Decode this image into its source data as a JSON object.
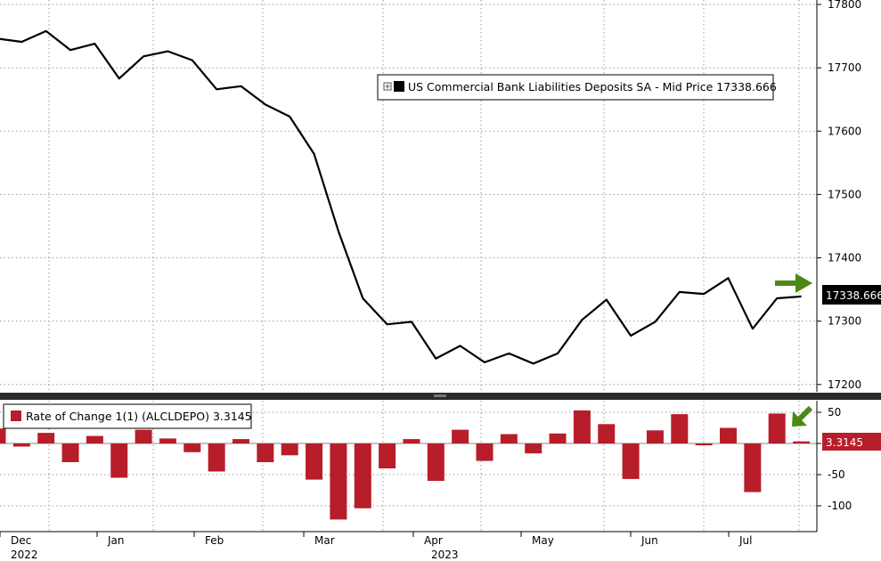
{
  "colors": {
    "line": "#000000",
    "bar": "#b81d2a",
    "arrow": "#4a8a14",
    "grid": "#9a9a9a",
    "last_label_bg": "#000000",
    "bar_label_bg": "#b81d2a"
  },
  "chart_data": [
    {
      "type": "line",
      "legend_text": "US Commercial Bank Liabilities Deposits SA - Mid Price 17338.666",
      "legend_position": "top-right",
      "y_ticks": [
        "17800",
        "17700",
        "17600",
        "17500",
        "17400",
        "17300",
        "17200"
      ],
      "ylim": [
        17180,
        17810
      ],
      "last_value_label": "17338.666",
      "grid": true,
      "series": [
        {
          "values": [
            17746,
            17741,
            17758,
            17728,
            17738,
            17683,
            17718,
            17726,
            17712,
            17666,
            17671,
            17642,
            17623,
            17564,
            17442,
            17336,
            17295,
            17299,
            17241,
            17261,
            17235,
            17249,
            17233,
            17249,
            17302,
            17334,
            17277,
            17299,
            17346,
            17343,
            17368,
            17288,
            17336,
            17339
          ]
        }
      ]
    },
    {
      "type": "bar",
      "legend_text": "Rate of Change 1(1) (ALCLDEPO) 3.3145",
      "legend_position": "top-left",
      "y_ticks": [
        "50",
        "0",
        "-50",
        "-100"
      ],
      "ylim": [
        -140,
        60
      ],
      "last_value_label": "3.3145",
      "grid": true,
      "series": [
        {
          "values": [
            24,
            -5,
            17,
            -30,
            12,
            -55,
            22,
            8,
            -14,
            -45,
            7,
            -30,
            -19,
            -58,
            -122,
            -104,
            -40,
            7,
            -60,
            22,
            -28,
            15,
            -16,
            16,
            53,
            31,
            -57,
            21,
            47,
            -3,
            25,
            -78,
            48,
            3.3
          ]
        }
      ]
    }
  ],
  "x_axis": {
    "months": [
      "Dec",
      "Jan",
      "Feb",
      "Mar",
      "Apr",
      "May",
      "Jun",
      "Jul"
    ],
    "years": [
      "2022",
      "2023"
    ]
  }
}
